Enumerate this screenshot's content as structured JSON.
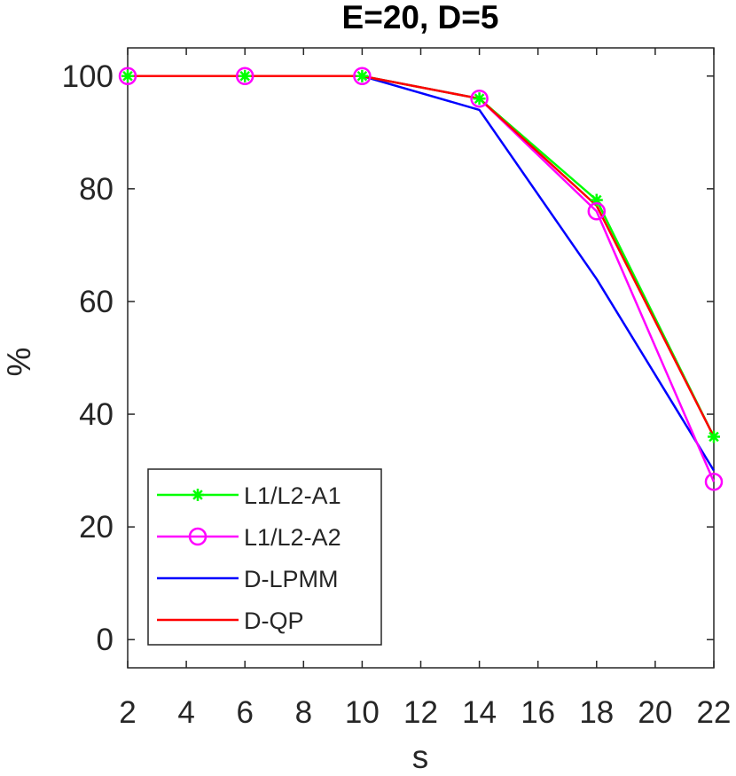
{
  "chart_data": {
    "type": "line",
    "title": "E=20, D=5",
    "xlabel": "s",
    "ylabel": "%",
    "xlim": [
      2,
      22
    ],
    "ylim": [
      -5,
      105
    ],
    "xticks": [
      2,
      4,
      6,
      8,
      10,
      12,
      14,
      16,
      18,
      20,
      22
    ],
    "yticks": [
      0,
      20,
      40,
      60,
      80,
      100
    ],
    "grid": false,
    "legend_position": "bottom-left",
    "x": [
      2,
      6,
      10,
      14,
      18,
      22
    ],
    "series": [
      {
        "name": "L1/L2-A1",
        "color": "#00ff00",
        "marker": "asterisk",
        "values": [
          100,
          100,
          100,
          96,
          78,
          36
        ]
      },
      {
        "name": "L1/L2-A2",
        "color": "#ff00ff",
        "marker": "circle",
        "values": [
          100,
          100,
          100,
          96,
          76,
          28
        ]
      },
      {
        "name": "D-LPMM",
        "color": "#0000ff",
        "marker": "none",
        "values": [
          100,
          100,
          100,
          94,
          64,
          30
        ]
      },
      {
        "name": "D-QP",
        "color": "#ff0000",
        "marker": "none",
        "values": [
          100,
          100,
          100,
          96,
          77,
          36
        ]
      }
    ]
  }
}
